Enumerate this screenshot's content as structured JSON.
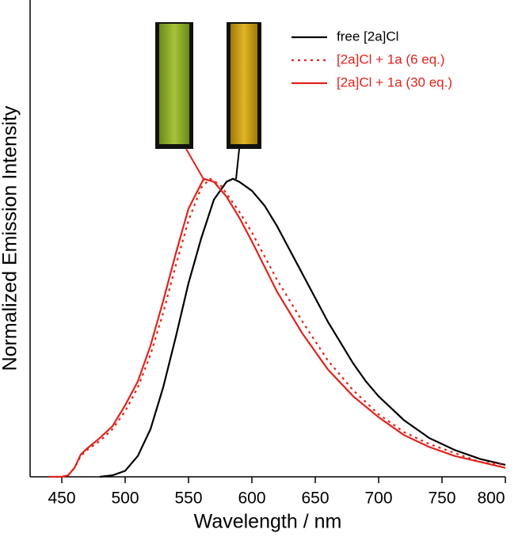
{
  "chart_data": {
    "type": "line",
    "xlabel": "Wavelength / nm",
    "ylabel": "Normalized Emission Intensity",
    "xlim": [
      425,
      800
    ],
    "ylim": [
      0,
      1.6
    ],
    "xticks": [
      450,
      500,
      550,
      600,
      650,
      700,
      750,
      800
    ],
    "legend": "top-right",
    "series": [
      {
        "name": "free [2a]Cl",
        "color": "#000000",
        "dash": "solid",
        "x": [
          480,
          490,
          500,
          510,
          520,
          530,
          540,
          550,
          560,
          570,
          580,
          585,
          590,
          600,
          610,
          620,
          630,
          640,
          650,
          660,
          670,
          680,
          690,
          700,
          720,
          740,
          760,
          780,
          800
        ],
        "values": [
          0,
          0.005,
          0.02,
          0.07,
          0.16,
          0.3,
          0.47,
          0.65,
          0.8,
          0.93,
          0.99,
          1.0,
          0.99,
          0.96,
          0.91,
          0.84,
          0.76,
          0.68,
          0.6,
          0.52,
          0.45,
          0.38,
          0.32,
          0.27,
          0.19,
          0.13,
          0.09,
          0.06,
          0.04
        ]
      },
      {
        "name": "[2a]Cl + 1a (6 eq.)",
        "color": "#e0231c",
        "dash": "dotted",
        "x": [
          440,
          450,
          455,
          460,
          465,
          470,
          480,
          490,
          500,
          510,
          520,
          530,
          540,
          550,
          560,
          567,
          575,
          580,
          590,
          600,
          620,
          640,
          660,
          680,
          700,
          720,
          740,
          760,
          780,
          800
        ],
        "values": [
          0,
          0,
          0.005,
          0.03,
          0.07,
          0.09,
          0.12,
          0.16,
          0.22,
          0.3,
          0.41,
          0.55,
          0.71,
          0.86,
          0.97,
          1.0,
          0.98,
          0.95,
          0.89,
          0.82,
          0.66,
          0.52,
          0.39,
          0.29,
          0.21,
          0.15,
          0.11,
          0.08,
          0.05,
          0.04
        ]
      },
      {
        "name": "[2a]Cl + 1a (30 eq.)",
        "color": "#e0231c",
        "dash": "solid",
        "x": [
          440,
          450,
          455,
          460,
          465,
          470,
          480,
          490,
          500,
          510,
          520,
          530,
          540,
          550,
          562,
          570,
          580,
          590,
          600,
          620,
          640,
          660,
          680,
          700,
          720,
          740,
          760,
          780,
          800
        ],
        "values": [
          0,
          0,
          0.005,
          0.03,
          0.075,
          0.095,
          0.13,
          0.17,
          0.24,
          0.32,
          0.44,
          0.59,
          0.75,
          0.9,
          1.0,
          0.99,
          0.94,
          0.87,
          0.79,
          0.62,
          0.48,
          0.36,
          0.27,
          0.2,
          0.14,
          0.1,
          0.07,
          0.05,
          0.03
        ]
      }
    ]
  }
}
